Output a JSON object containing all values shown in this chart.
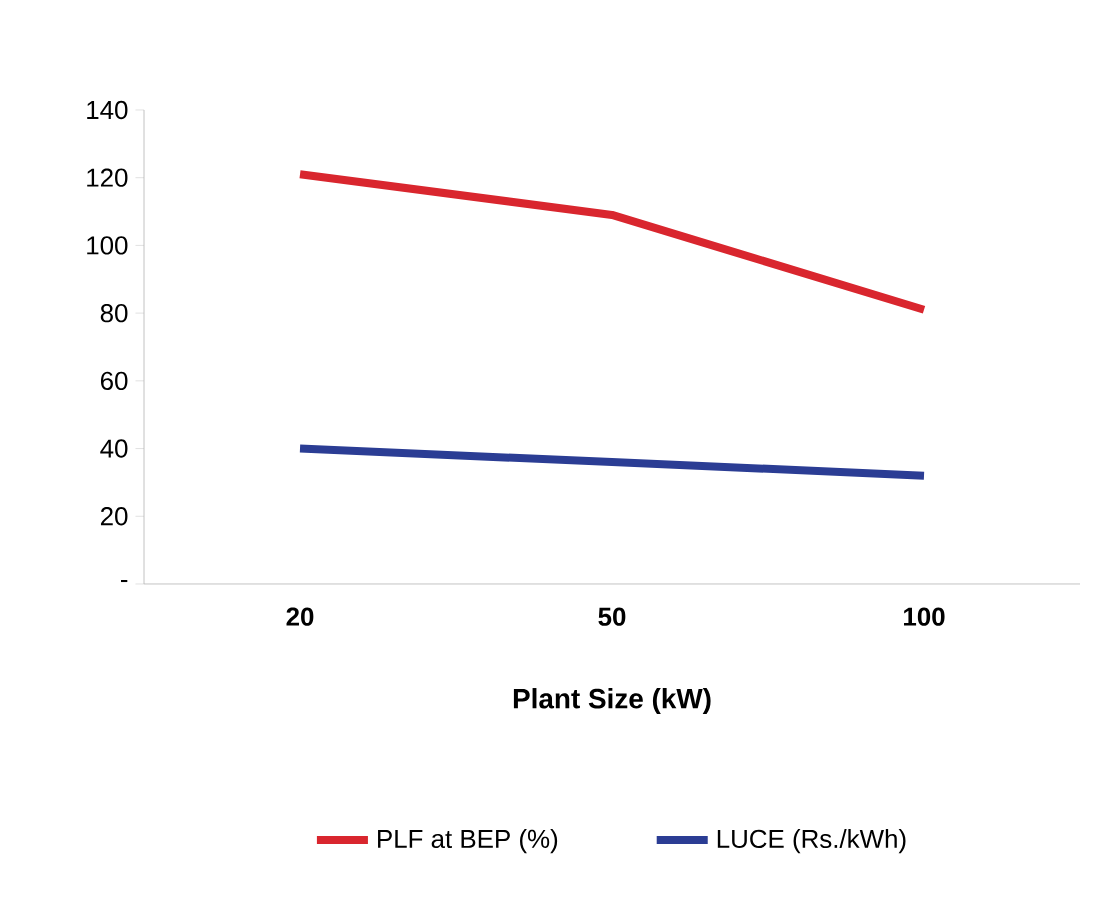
{
  "chart_data": {
    "type": "line",
    "xlabel": "Plant Size (kW)",
    "categories": [
      "20",
      "50",
      "100"
    ],
    "series": [
      {
        "name": "PLF at BEP (%)",
        "color": "#d9262e",
        "values": [
          121,
          109,
          81
        ]
      },
      {
        "name": "LUCE (Rs./kWh)",
        "color": "#2b3d94",
        "values": [
          40,
          36,
          32
        ]
      }
    ],
    "ylim": [
      0,
      140
    ],
    "yticks": [
      {
        "value": 0,
        "label": "-"
      },
      20,
      40,
      60,
      80,
      100,
      120,
      140
    ],
    "grid": false,
    "legend": "bottom",
    "marker": "none",
    "line_style": "solid"
  }
}
